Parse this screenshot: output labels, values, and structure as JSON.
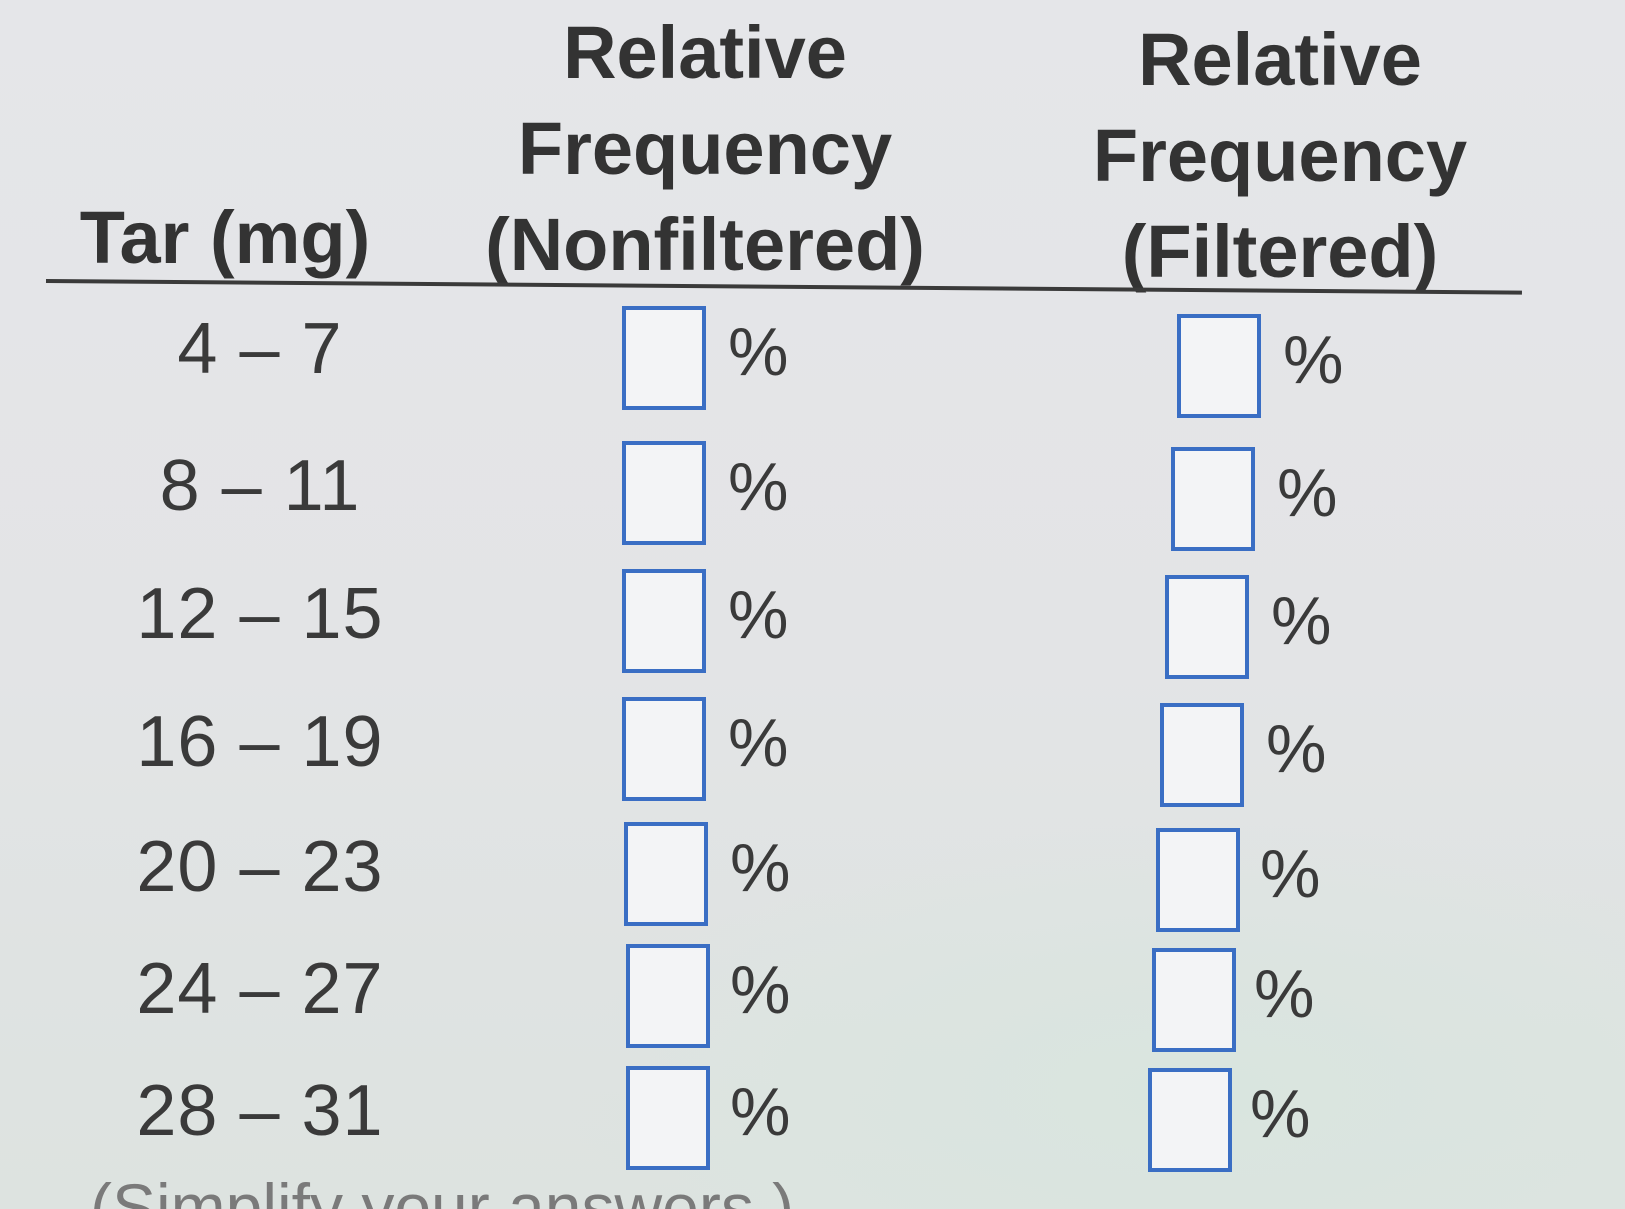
{
  "table": {
    "headers": {
      "tar": "Tar (mg)",
      "nonfiltered": [
        "Relative",
        "Frequency",
        "(Nonfiltered)"
      ],
      "filtered": [
        "Relative",
        "Frequency",
        "(Filtered)"
      ]
    },
    "rows": [
      {
        "tar": "4 – 7",
        "nonfiltered_value": "",
        "filtered_value": "",
        "unit": "%"
      },
      {
        "tar": "8 – 11",
        "nonfiltered_value": "",
        "filtered_value": "",
        "unit": "%"
      },
      {
        "tar": "12 – 15",
        "nonfiltered_value": "",
        "filtered_value": "",
        "unit": "%"
      },
      {
        "tar": "16 – 19",
        "nonfiltered_value": "",
        "filtered_value": "",
        "unit": "%"
      },
      {
        "tar": "20 – 23",
        "nonfiltered_value": "",
        "filtered_value": "",
        "unit": "%"
      },
      {
        "tar": "24 – 27",
        "nonfiltered_value": "",
        "filtered_value": "",
        "unit": "%"
      },
      {
        "tar": "28 – 31",
        "nonfiltered_value": "",
        "filtered_value": "",
        "unit": "%"
      }
    ]
  },
  "footer": {
    "instruction": "(Simplify your answers.)"
  },
  "colors": {
    "input_border": "#3a6ec4",
    "text": "#333333",
    "background": "#e4e5e7"
  }
}
